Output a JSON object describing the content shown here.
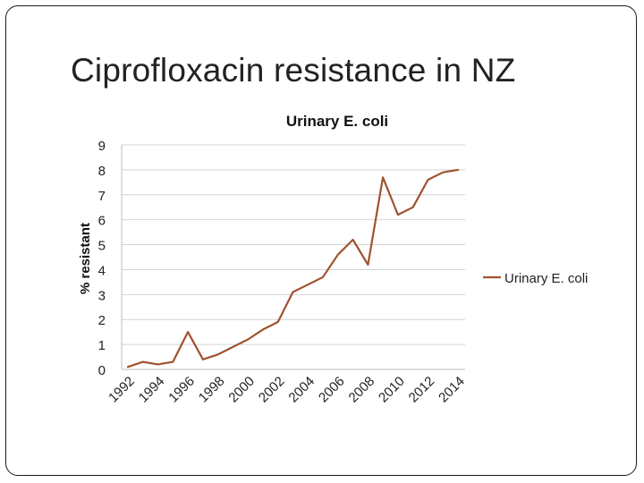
{
  "slide": {
    "title": "Ciprofloxacin resistance in NZ"
  },
  "chart_data": {
    "type": "line",
    "title": "Urinary E. coli",
    "xlabel": "",
    "ylabel": "% resistant",
    "x": [
      1992,
      1993,
      1994,
      1995,
      1996,
      1997,
      1998,
      1999,
      2000,
      2001,
      2002,
      2003,
      2004,
      2005,
      2006,
      2007,
      2008,
      2009,
      2010,
      2011,
      2012,
      2013,
      2014
    ],
    "x_tick_labels": [
      "1992",
      "1994",
      "1996",
      "1998",
      "2000",
      "2002",
      "2004",
      "2006",
      "2008",
      "2010",
      "2012",
      "2014"
    ],
    "series": [
      {
        "name": "Urinary E. coli",
        "color": "#a0522d",
        "values": [
          0.1,
          0.3,
          0.2,
          0.3,
          1.5,
          0.4,
          0.6,
          0.9,
          1.2,
          1.6,
          1.9,
          3.1,
          3.4,
          3.7,
          4.6,
          5.2,
          4.2,
          7.7,
          6.2,
          6.5,
          7.6,
          7.9,
          8.0
        ]
      }
    ],
    "ylim": [
      0,
      9
    ],
    "y_ticks": [
      0,
      1,
      2,
      3,
      4,
      5,
      6,
      7,
      8,
      9
    ],
    "grid": "horizontal",
    "legend_position": "right"
  }
}
